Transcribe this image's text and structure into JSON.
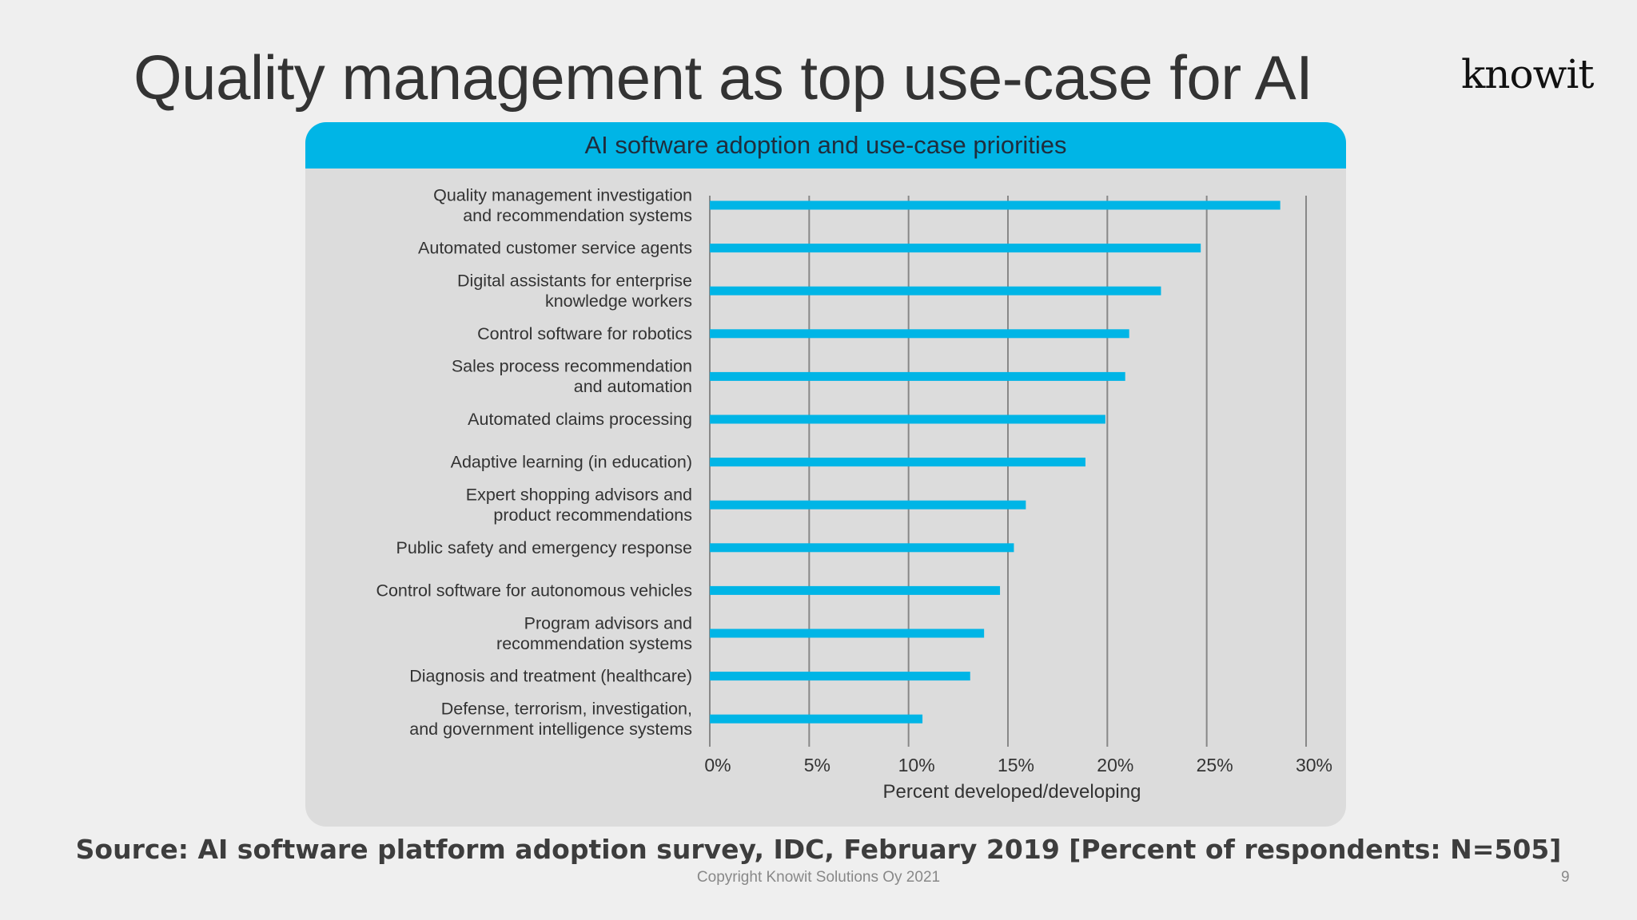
{
  "slide": {
    "title": "Quality management as top use-case for AI",
    "logo_text": "knowit",
    "source": "Source: AI software platform adoption survey, IDC, February 2019 [Percent of respondents: N=505]",
    "copyright": "Copyright Knowit Solutions Oy 2021",
    "page_number": "9"
  },
  "colors": {
    "bar": "#00b5e6",
    "header": "#00b5e6",
    "panel": "#dcdcdc",
    "gridline": "#888888",
    "background": "#efefef"
  },
  "chart_data": {
    "type": "bar",
    "orientation": "horizontal",
    "title": "AI software adoption and use-case priorities",
    "xlabel": "Percent developed/developing",
    "ylabel": "",
    "xlim": [
      0,
      30
    ],
    "x_ticks": [
      "0%",
      "5%",
      "10%",
      "15%",
      "20%",
      "25%",
      "30%"
    ],
    "grid": true,
    "categories": [
      [
        "Quality management investigation",
        "and recommendation systems"
      ],
      [
        "Automated customer service agents"
      ],
      [
        "Digital assistants for enterprise",
        "knowledge workers"
      ],
      [
        "Control software for robotics"
      ],
      [
        "Sales process recommendation",
        "and automation"
      ],
      [
        "Automated claims processing"
      ],
      [
        "Adaptive learning (in education)"
      ],
      [
        "Expert shopping advisors and",
        "product recommendations"
      ],
      [
        "Public safety and emergency response"
      ],
      [
        "Control software for autonomous vehicles"
      ],
      [
        "Program advisors and",
        "recommendation systems"
      ],
      [
        "Diagnosis and treatment (healthcare)"
      ],
      [
        "Defense, terrorism, investigation,",
        "and government intelligence systems"
      ]
    ],
    "values": [
      28.7,
      24.7,
      22.7,
      21.1,
      20.9,
      19.9,
      18.9,
      15.9,
      15.3,
      14.6,
      13.8,
      13.1,
      10.7
    ]
  }
}
